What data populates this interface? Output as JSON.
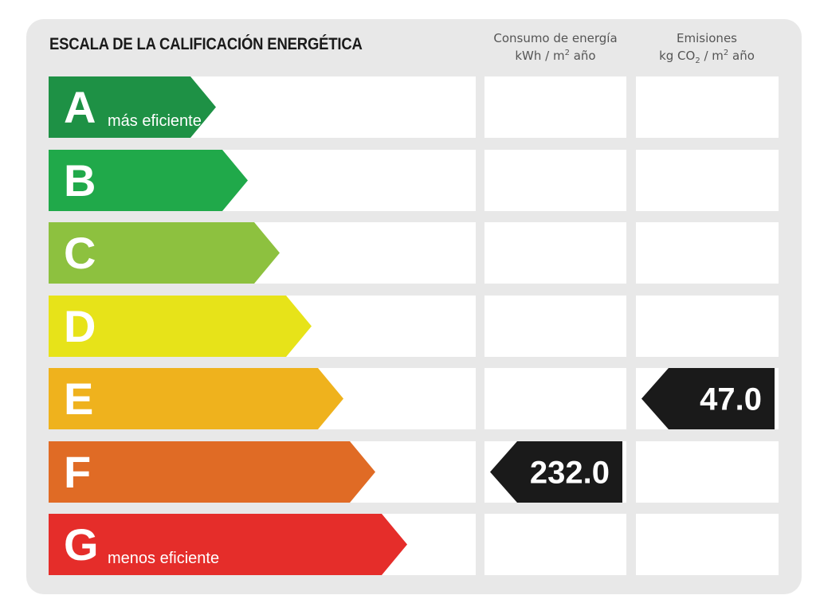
{
  "header": {
    "title": "ESCALA DE LA CALIFICACIÓN ENERGÉTICA",
    "energy_col_line1": "Consumo de energía",
    "energy_col_unit_a": "kWh / m",
    "energy_col_unit_sup": "2",
    "energy_col_unit_b": " año",
    "emissions_col_line1": "Emisiones",
    "emissions_col_unit_a": "kg CO",
    "emissions_col_unit_sub": "2",
    "emissions_col_unit_b": " / m",
    "emissions_col_unit_sup": "2",
    "emissions_col_unit_c": " año"
  },
  "chart_data": {
    "type": "table",
    "title": "ESCALA DE LA CALIFICACIÓN ENERGÉTICA",
    "grades": [
      {
        "letter": "A",
        "note": "más eficiente",
        "color": "#1e9145"
      },
      {
        "letter": "B",
        "note": "",
        "color": "#20a94a"
      },
      {
        "letter": "C",
        "note": "",
        "color": "#8dc13f"
      },
      {
        "letter": "D",
        "note": "",
        "color": "#e7e319"
      },
      {
        "letter": "E",
        "note": "",
        "color": "#efb21d"
      },
      {
        "letter": "F",
        "note": "",
        "color": "#e06b25"
      },
      {
        "letter": "G",
        "note": "menos eficiente",
        "color": "#e52d2a"
      }
    ],
    "energy_consumption": {
      "value": "232.0",
      "grade": "F",
      "unit": "kWh / m² año"
    },
    "emissions": {
      "value": "47.0",
      "grade": "E",
      "unit": "kg CO₂ / m² año"
    },
    "indicator_color": "#1a1a1a"
  }
}
